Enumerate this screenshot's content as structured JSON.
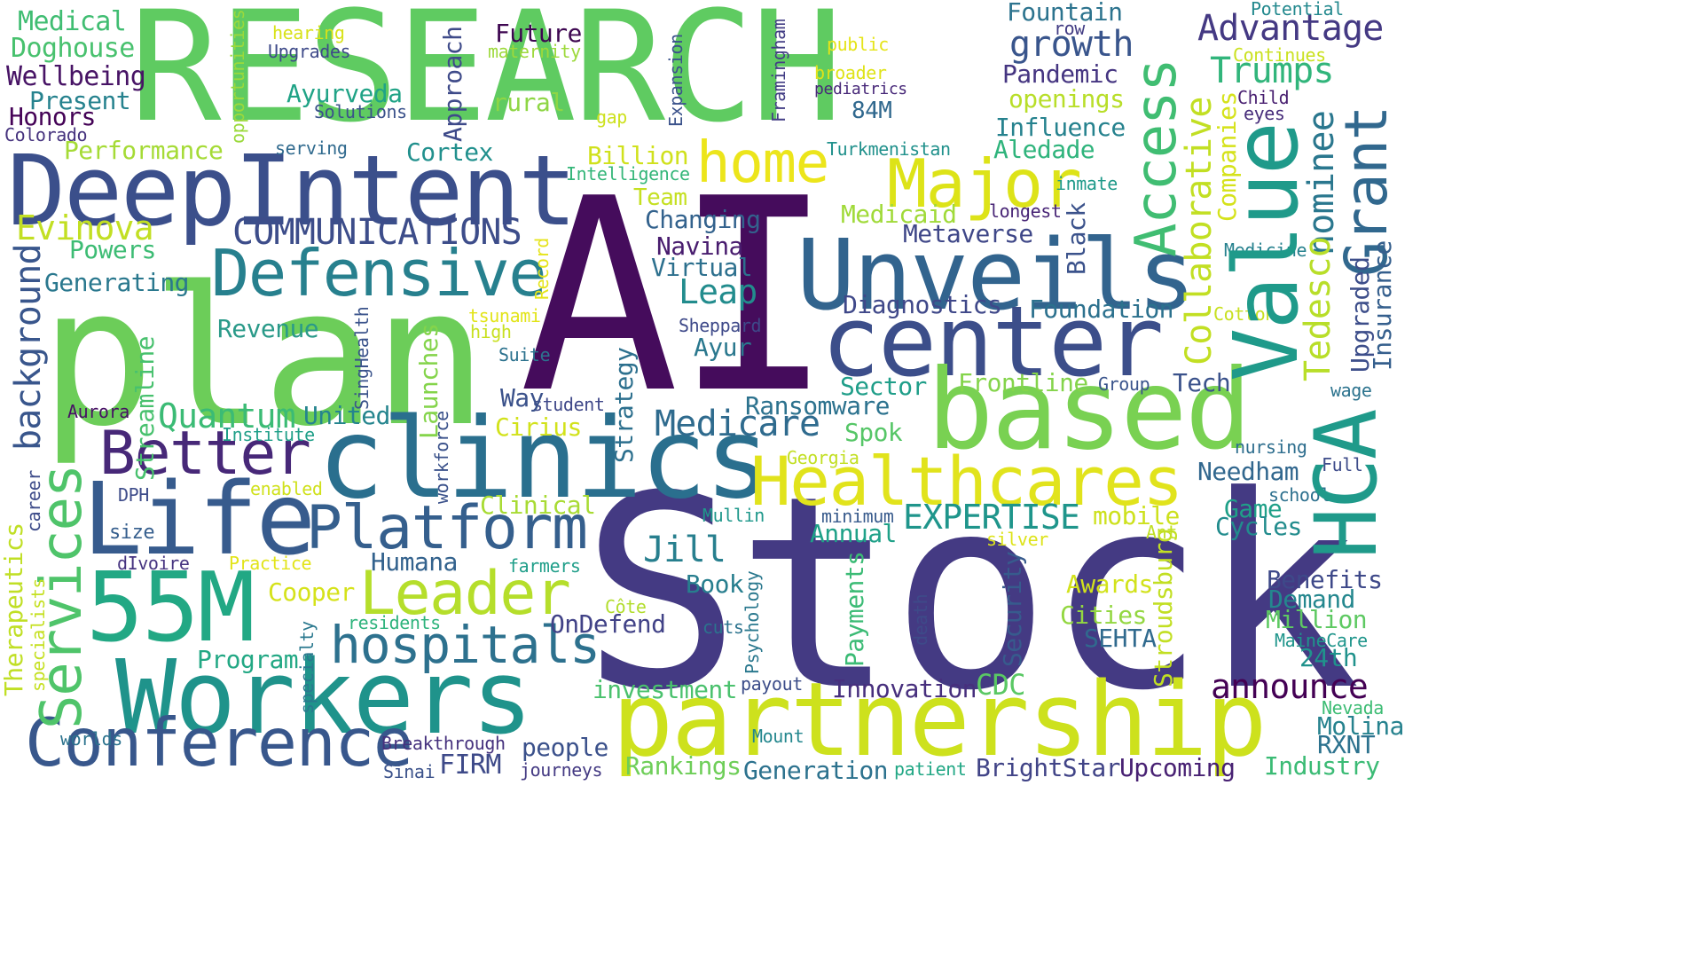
{
  "words": [
    {
      "text": "RESEARCH",
      "color": "#5fcb61",
      "vertical": false
    },
    {
      "text": "AI",
      "color": "#450c5c",
      "vertical": false
    },
    {
      "text": "Stock",
      "color": "#443a83",
      "vertical": false
    },
    {
      "text": "plan",
      "color": "#6ccd59",
      "vertical": false
    },
    {
      "text": "DeepIntent",
      "color": "#3b4f8b",
      "vertical": false
    },
    {
      "text": "Unveils",
      "color": "#32648e",
      "vertical": false
    },
    {
      "text": "center",
      "color": "#3c4e8a",
      "vertical": false
    },
    {
      "text": "clinics",
      "color": "#2a6f8e",
      "vertical": false
    },
    {
      "text": "based",
      "color": "#79d152",
      "vertical": false
    },
    {
      "text": "partnership",
      "color": "#cde11d",
      "vertical": false
    },
    {
      "text": "Workers",
      "color": "#1f938b",
      "vertical": false
    },
    {
      "text": "Life",
      "color": "#375b8d",
      "vertical": false
    },
    {
      "text": "55M",
      "color": "#22a884",
      "vertical": false
    },
    {
      "text": "Conference",
      "color": "#38578c",
      "vertical": false
    },
    {
      "text": "Healthcares",
      "color": "#e1e31c",
      "vertical": false
    },
    {
      "text": "Defensive",
      "color": "#27808e",
      "vertical": false
    },
    {
      "text": "Better",
      "color": "#472878",
      "vertical": false
    },
    {
      "text": "Platform",
      "color": "#355f8d",
      "vertical": false
    },
    {
      "text": "Leader",
      "color": "#b5de2b",
      "vertical": false
    },
    {
      "text": "hospitals",
      "color": "#2d718e",
      "vertical": false
    },
    {
      "text": "Major",
      "color": "#dde318",
      "vertical": false
    },
    {
      "text": "home",
      "color": "#ece51b",
      "vertical": false
    },
    {
      "text": "COMMUNICATIONS",
      "color": "#3d4d8a",
      "vertical": false
    },
    {
      "text": "Evinova",
      "color": "#c2df23",
      "vertical": false
    },
    {
      "text": "Powers",
      "color": "#3dbc74",
      "vertical": false
    },
    {
      "text": "Generating",
      "color": "#2a788e",
      "vertical": false
    },
    {
      "text": "Revenue",
      "color": "#2a9a89",
      "vertical": false
    },
    {
      "text": "Quantum",
      "color": "#3bbb75",
      "vertical": false
    },
    {
      "text": "United",
      "color": "#25858e",
      "vertical": false
    },
    {
      "text": "Medicare",
      "color": "#2f6b8e",
      "vertical": false
    },
    {
      "text": "Ransomware",
      "color": "#2c728e",
      "vertical": false
    },
    {
      "text": "Medical",
      "color": "#40bd72",
      "vertical": false
    },
    {
      "text": "Doghouse",
      "color": "#48c16e",
      "vertical": false
    },
    {
      "text": "Wellbeing",
      "color": "#471365",
      "vertical": false
    },
    {
      "text": "Present",
      "color": "#26828e",
      "vertical": false
    },
    {
      "text": "Honors",
      "color": "#440256",
      "vertical": false
    },
    {
      "text": "Colorado",
      "color": "#46337e",
      "vertical": false
    },
    {
      "text": "Performance",
      "color": "#a5db36",
      "vertical": false
    },
    {
      "text": "hearing",
      "color": "#d8e219",
      "vertical": false
    },
    {
      "text": "Upgrades",
      "color": "#3e4a89",
      "vertical": false
    },
    {
      "text": "Ayurveda",
      "color": "#20a386",
      "vertical": false
    },
    {
      "text": "Solutions",
      "color": "#3b528b",
      "vertical": false
    },
    {
      "text": "serving",
      "color": "#306a8e",
      "vertical": false
    },
    {
      "text": "Cortex",
      "color": "#21908d",
      "vertical": false
    },
    {
      "text": "Future",
      "color": "#3e0751",
      "vertical": false
    },
    {
      "text": "maternity",
      "color": "#9dd93b",
      "vertical": false
    },
    {
      "text": "rural",
      "color": "#8ed645",
      "vertical": false
    },
    {
      "text": "gap",
      "color": "#cde11d",
      "vertical": false
    },
    {
      "text": "Billion",
      "color": "#d0e11c",
      "vertical": false
    },
    {
      "text": "Intelligence",
      "color": "#34b679",
      "vertical": false
    },
    {
      "text": "Team",
      "color": "#c5e021",
      "vertical": false
    },
    {
      "text": "Changing",
      "color": "#33628d",
      "vertical": false
    },
    {
      "text": "Navina",
      "color": "#481c6e",
      "vertical": false
    },
    {
      "text": "Virtual",
      "color": "#2d708e",
      "vertical": false
    },
    {
      "text": "Leap",
      "color": "#228c8d",
      "vertical": false
    },
    {
      "text": "Diagnostics",
      "color": "#3f4889",
      "vertical": false
    },
    {
      "text": "Sheppard",
      "color": "#3e4989",
      "vertical": false
    },
    {
      "text": "Ayur",
      "color": "#2a788e",
      "vertical": false
    },
    {
      "text": "public",
      "color": "#e5e419",
      "vertical": false
    },
    {
      "text": "broader",
      "color": "#dfe318",
      "vertical": false
    },
    {
      "text": "pediatrics",
      "color": "#482979",
      "vertical": false
    },
    {
      "text": "84M",
      "color": "#30688e",
      "vertical": false
    },
    {
      "text": "Turkmenistan",
      "color": "#21918c",
      "vertical": false
    },
    {
      "text": "Medicaid",
      "color": "#a0da39",
      "vertical": false
    },
    {
      "text": "Metaverse",
      "color": "#3f4788",
      "vertical": false
    },
    {
      "text": "longest",
      "color": "#482576",
      "vertical": false
    },
    {
      "text": "inmate",
      "color": "#1f9a8a",
      "vertical": false
    },
    {
      "text": "Fountain",
      "color": "#2c738e",
      "vertical": false
    },
    {
      "text": "row",
      "color": "#433d84",
      "vertical": false
    },
    {
      "text": "growth",
      "color": "#39558c",
      "vertical": false
    },
    {
      "text": "Pandemic",
      "color": "#453581",
      "vertical": false
    },
    {
      "text": "openings",
      "color": "#b8de29",
      "vertical": false
    },
    {
      "text": "Influence",
      "color": "#26828e",
      "vertical": false
    },
    {
      "text": "Aledade",
      "color": "#2fb47c",
      "vertical": false
    },
    {
      "text": "Potential",
      "color": "#23898e",
      "vertical": false
    },
    {
      "text": "Advantage",
      "color": "#443983",
      "vertical": false
    },
    {
      "text": "Continues",
      "color": "#cae11f",
      "vertical": false
    },
    {
      "text": "Trumps",
      "color": "#31b57b",
      "vertical": false
    },
    {
      "text": "Child",
      "color": "#481f70",
      "vertical": false
    },
    {
      "text": "eyes",
      "color": "#472d7b",
      "vertical": false
    },
    {
      "text": "Medicine",
      "color": "#26818e",
      "vertical": false
    },
    {
      "text": "Cotton",
      "color": "#c8e020",
      "vertical": false
    },
    {
      "text": "wage",
      "color": "#2c738e",
      "vertical": false
    },
    {
      "text": "Foundation",
      "color": "#2c718e",
      "vertical": false
    },
    {
      "text": "Frontline",
      "color": "#84d44b",
      "vertical": false
    },
    {
      "text": "Sector",
      "color": "#1f9e89",
      "vertical": false
    },
    {
      "text": "Group",
      "color": "#3a548c",
      "vertical": false
    },
    {
      "text": "Tech",
      "color": "#3b528b",
      "vertical": false
    },
    {
      "text": "Spok",
      "color": "#56c667",
      "vertical": false
    },
    {
      "text": "Georgia",
      "color": "#c2df23",
      "vertical": false
    },
    {
      "text": "Needham",
      "color": "#31678e",
      "vertical": false
    },
    {
      "text": "Full",
      "color": "#3e4c8a",
      "vertical": false
    },
    {
      "text": "nursing",
      "color": "#2e6e8e",
      "vertical": false
    },
    {
      "text": "school",
      "color": "#2d708e",
      "vertical": false
    },
    {
      "text": "Game",
      "color": "#1fa088",
      "vertical": false
    },
    {
      "text": "Cycles",
      "color": "#228c8d",
      "vertical": false
    },
    {
      "text": "Ant",
      "color": "#c0df25",
      "vertical": false
    },
    {
      "text": "Benefits",
      "color": "#3e4989",
      "vertical": false
    },
    {
      "text": "Demand",
      "color": "#24878e",
      "vertical": false
    },
    {
      "text": "Million",
      "color": "#5ec962",
      "vertical": false
    },
    {
      "text": "MaineCare",
      "color": "#1f958b",
      "vertical": false
    },
    {
      "text": "24th",
      "color": "#20928c",
      "vertical": false
    },
    {
      "text": "announce",
      "color": "#440154",
      "vertical": false
    },
    {
      "text": "Nevada",
      "color": "#3dbc74",
      "vertical": false
    },
    {
      "text": "Molina",
      "color": "#26828e",
      "vertical": false
    },
    {
      "text": "RXNT",
      "color": "#2c728e",
      "vertical": false
    },
    {
      "text": "Industry",
      "color": "#3bbb75",
      "vertical": false
    },
    {
      "text": "Awards",
      "color": "#d2e21b",
      "vertical": false
    },
    {
      "text": "Cities",
      "color": "#93d741",
      "vertical": false
    },
    {
      "text": "SEHTA",
      "color": "#306a8e",
      "vertical": false
    },
    {
      "text": "EXPERTISE",
      "color": "#1f958b",
      "vertical": false
    },
    {
      "text": "mobile",
      "color": "#cde11d",
      "vertical": false
    },
    {
      "text": "minimum",
      "color": "#375a8c",
      "vertical": false
    },
    {
      "text": "Annual",
      "color": "#1fa188",
      "vertical": false
    },
    {
      "text": "silver",
      "color": "#dde318",
      "vertical": false
    },
    {
      "text": "Mullin",
      "color": "#1f988b",
      "vertical": false
    },
    {
      "text": "Jill",
      "color": "#277f8e",
      "vertical": false
    },
    {
      "text": "Book",
      "color": "#277e8e",
      "vertical": false
    },
    {
      "text": "Humana",
      "color": "#33628d",
      "vertical": false
    },
    {
      "text": "OnDefend",
      "color": "#414287",
      "vertical": false
    },
    {
      "text": "farmers",
      "color": "#1f9e89",
      "vertical": false
    },
    {
      "text": "Côte",
      "color": "#b2dd2d",
      "vertical": false
    },
    {
      "text": "cuts",
      "color": "#2c738e",
      "vertical": false
    },
    {
      "text": "Innovation",
      "color": "#472f7d",
      "vertical": false
    },
    {
      "text": "CDC",
      "color": "#5ac864",
      "vertical": false
    },
    {
      "text": "investment",
      "color": "#4ac16d",
      "vertical": false
    },
    {
      "text": "payout",
      "color": "#3d4e8a",
      "vertical": false
    },
    {
      "text": "Mount",
      "color": "#24878e",
      "vertical": false
    },
    {
      "text": "Generation",
      "color": "#2c728e",
      "vertical": false
    },
    {
      "text": "patient",
      "color": "#22a785",
      "vertical": false
    },
    {
      "text": "BrightStar",
      "color": "#414487",
      "vertical": false
    },
    {
      "text": "Upcoming",
      "color": "#482173",
      "vertical": false
    },
    {
      "text": "Rankings",
      "color": "#6ece58",
      "vertical": false
    },
    {
      "text": "FIRM",
      "color": "#3e4a89",
      "vertical": false
    },
    {
      "text": "journeys",
      "color": "#443a83",
      "vertical": false
    },
    {
      "text": "people",
      "color": "#3b518b",
      "vertical": false
    },
    {
      "text": "Breakthrough",
      "color": "#46327e",
      "vertical": false
    },
    {
      "text": "Sinai",
      "color": "#3b528b",
      "vertical": false
    },
    {
      "text": "worlds",
      "color": "#2c738e",
      "vertical": false
    },
    {
      "text": "Program",
      "color": "#22a884",
      "vertical": false
    },
    {
      "text": "residents",
      "color": "#2eb37c",
      "vertical": false
    },
    {
      "text": "Cooper",
      "color": "#d5e21a",
      "vertical": false
    },
    {
      "text": "Practice",
      "color": "#e2e418",
      "vertical": false
    },
    {
      "text": "dIvoire",
      "color": "#463480",
      "vertical": false
    },
    {
      "text": "size",
      "color": "#355e8d",
      "vertical": false
    },
    {
      "text": "DPH",
      "color": "#3e4c8a",
      "vertical": false
    },
    {
      "text": "enabled",
      "color": "#d0e11c",
      "vertical": false
    },
    {
      "text": "Clinical",
      "color": "#a8db34",
      "vertical": false
    },
    {
      "text": "Cirius",
      "color": "#d2e21b",
      "vertical": false
    },
    {
      "text": "student",
      "color": "#3f4889",
      "vertical": false
    },
    {
      "text": "Way",
      "color": "#3b528b",
      "vertical": false
    },
    {
      "text": "Suite",
      "color": "#2c728e",
      "vertical": false
    },
    {
      "text": "tsunami",
      "color": "#e2e418",
      "vertical": false
    },
    {
      "text": "high",
      "color": "#c8e020",
      "vertical": false
    },
    {
      "text": "Institute",
      "color": "#1f9f88",
      "vertical": false
    },
    {
      "text": "Aurora",
      "color": "#471164",
      "vertical": false
    },
    {
      "text": "opportunities",
      "color": "#9bd93c",
      "vertical": true
    },
    {
      "text": "Approach",
      "color": "#3e4a89",
      "vertical": true
    },
    {
      "text": "Expansion",
      "color": "#3b528b",
      "vertical": true
    },
    {
      "text": "Framingham",
      "color": "#433e85",
      "vertical": true
    },
    {
      "text": "Access",
      "color": "#40bd72",
      "vertical": true
    },
    {
      "text": "Collaborative",
      "color": "#c2df23",
      "vertical": true
    },
    {
      "text": "Companies",
      "color": "#d5e21a",
      "vertical": true
    },
    {
      "text": "nominee",
      "color": "#2a778e",
      "vertical": true
    },
    {
      "text": "Grant",
      "color": "#31688e",
      "vertical": true
    },
    {
      "text": "Value",
      "color": "#1f9a8a",
      "vertical": true
    },
    {
      "text": "Tedesco",
      "color": "#b8de29",
      "vertical": true
    },
    {
      "text": "Upgraded",
      "color": "#3d4e8a",
      "vertical": true
    },
    {
      "text": "Insurance",
      "color": "#355f8d",
      "vertical": true
    },
    {
      "text": "HCA",
      "color": "#1f9a8a",
      "vertical": true
    },
    {
      "text": "Black",
      "color": "#3b528b",
      "vertical": true
    },
    {
      "text": "background",
      "color": "#39568c",
      "vertical": true
    },
    {
      "text": "Services",
      "color": "#4fc46a",
      "vertical": true
    },
    {
      "text": "Streamline",
      "color": "#48c16e",
      "vertical": true
    },
    {
      "text": "Record",
      "color": "#e5e419",
      "vertical": true
    },
    {
      "text": "SingHealth",
      "color": "#3a538b",
      "vertical": true
    },
    {
      "text": "Launches",
      "color": "#84d44b",
      "vertical": true
    },
    {
      "text": "workforce",
      "color": "#3b528b",
      "vertical": true
    },
    {
      "text": "Strategy",
      "color": "#2d708e",
      "vertical": true
    },
    {
      "text": "Therapeutics",
      "color": "#c0df25",
      "vertical": true
    },
    {
      "text": "career",
      "color": "#3e4c8a",
      "vertical": true
    },
    {
      "text": "specialists",
      "color": "#c5e021",
      "vertical": true
    },
    {
      "text": "specialty",
      "color": "#2a788e",
      "vertical": true
    },
    {
      "text": "Psychology",
      "color": "#2a788e",
      "vertical": true
    },
    {
      "text": "Payments",
      "color": "#3bbb75",
      "vertical": true
    },
    {
      "text": "death",
      "color": "#3e4a89",
      "vertical": true
    },
    {
      "text": "Security",
      "color": "#375b8d",
      "vertical": true
    },
    {
      "text": "Stroudsburg",
      "color": "#c2df23",
      "vertical": true
    }
  ]
}
